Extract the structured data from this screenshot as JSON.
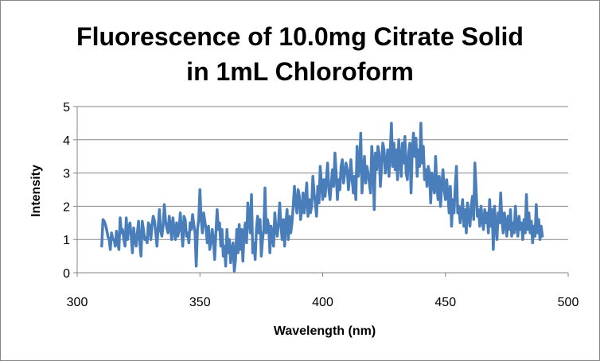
{
  "chart_data": {
    "type": "line",
    "title_lines": [
      "Fluorescence of 10.0mg Citrate Solid",
      "in 1mL Chloroform"
    ],
    "xlabel": "Wavelength (nm)",
    "ylabel": "Intensity",
    "xlim": [
      300,
      500
    ],
    "ylim": [
      0,
      5
    ],
    "x_ticks": [
      300,
      350,
      400,
      450,
      500
    ],
    "y_ticks": [
      0,
      1,
      2,
      3,
      4,
      5
    ],
    "grid": "horizontal",
    "legend": "none",
    "series": [
      {
        "name": "Fluorescence",
        "color": "#4a7ebb",
        "x_start": 310,
        "x_step": 0.5,
        "values": [
          0.8,
          1.6,
          1.55,
          1.45,
          1.3,
          1.1,
          1.0,
          0.7,
          1.2,
          1.0,
          1.0,
          0.8,
          1.25,
          0.9,
          0.7,
          1.65,
          1.2,
          1.3,
          1.0,
          0.8,
          1.65,
          1.0,
          1.35,
          1.5,
          1.1,
          0.6,
          1.35,
          1.0,
          0.8,
          1.2,
          1.55,
          0.9,
          0.5,
          1.55,
          1.3,
          1.0,
          1.05,
          0.9,
          1.5,
          1.4,
          1.0,
          1.45,
          1.7,
          1.55,
          1.2,
          0.8,
          1.4,
          1.9,
          1.25,
          1.1,
          1.4,
          2.05,
          1.55,
          1.35,
          1.2,
          1.7,
          1.4,
          1.0,
          1.65,
          1.3,
          1.0,
          1.5,
          1.1,
          1.3,
          1.8,
          1.3,
          0.8,
          1.7,
          1.6,
          1.1,
          1.2,
          0.9,
          1.5,
          1.3,
          1.75,
          1.45,
          1.2,
          0.2,
          1.3,
          1.6,
          2.5,
          1.6,
          1.2,
          1.8,
          1.55,
          1.3,
          0.9,
          1.4,
          0.7,
          0.9,
          1.3,
          1.0,
          0.4,
          1.2,
          1.9,
          1.3,
          1.5,
          0.8,
          1.3,
          0.5,
          0.8,
          0.2,
          1.3,
          0.6,
          1.0,
          0.3,
          0.7,
          0.9,
          0.05,
          0.4,
          1.3,
          0.6,
          1.45,
          0.7,
          1.3,
          0.35,
          1.2,
          1.5,
          0.9,
          2.1,
          1.65,
          1.2,
          2.35,
          0.6,
          0.9,
          0.4,
          1.3,
          1.7,
          1.2,
          1.6,
          0.5,
          1.0,
          1.3,
          2.55,
          1.2,
          1.6,
          1.4,
          0.6,
          1.4,
          1.05,
          0.8,
          1.8,
          1.3,
          1.1,
          1.5,
          2.1,
          1.4,
          1.0,
          1.6,
          0.8,
          1.5,
          1.9,
          1.0,
          1.7,
          1.2,
          1.5,
          2.0,
          2.6,
          2.1,
          1.8,
          2.5,
          2.3,
          1.6,
          1.9,
          2.4,
          1.8,
          2.2,
          2.7,
          1.7,
          2.2,
          1.8,
          2.0,
          2.9,
          2.4,
          2.1,
          1.7,
          2.6,
          2.1,
          3.2,
          2.7,
          2.2,
          2.8,
          2.3,
          2.8,
          3.3,
          2.5,
          2.2,
          2.7,
          3.1,
          2.6,
          3.6,
          3.0,
          2.2,
          2.8,
          2.5,
          3.2,
          3.4,
          2.7,
          3.0,
          3.3,
          3.1,
          2.5,
          2.9,
          3.4,
          2.8,
          2.4,
          2.9,
          2.2,
          3.8,
          2.9,
          3.2,
          4.2,
          2.4,
          3.0,
          3.5,
          2.7,
          3.2,
          3.0,
          2.7,
          2.4,
          3.8,
          3.3,
          1.9,
          3.6,
          3.1,
          3.8,
          3.6,
          2.6,
          3.2,
          3.9,
          3.7,
          3.0,
          3.3,
          3.7,
          2.9,
          3.6,
          4.5,
          3.2,
          3.9,
          3.1,
          3.7,
          2.8,
          4.0,
          3.4,
          2.9,
          3.9,
          3.3,
          4.1,
          3.0,
          2.8,
          3.6,
          3.9,
          2.4,
          3.7,
          4.2,
          3.5,
          4.05,
          2.9,
          3.7,
          3.2,
          4.5,
          3.3,
          3.8,
          2.8,
          3.1,
          2.6,
          3.2,
          3.0,
          2.1,
          3.0,
          2.7,
          2.4,
          3.5,
          2.6,
          2.2,
          2.9,
          2.0,
          2.6,
          3.1,
          2.5,
          2.2,
          2.8,
          2.4,
          1.8,
          2.6,
          1.4,
          2.2,
          1.8,
          2.6,
          3.2,
          1.8,
          2.0,
          1.5,
          1.8,
          2.2,
          1.4,
          1.9,
          1.2,
          2.1,
          1.7,
          1.4,
          2.0,
          2.3,
          1.6,
          3.3,
          2.5,
          1.7,
          1.9,
          1.4,
          2.0,
          1.6,
          1.3,
          1.9,
          1.5,
          1.8,
          1.2,
          2.2,
          1.4,
          1.9,
          0.7,
          2.0,
          1.4,
          1.0,
          1.8,
          1.5,
          2.4,
          1.6,
          1.2,
          1.8,
          1.5,
          1.1,
          1.7,
          1.3,
          1.9,
          1.1,
          1.5,
          1.2,
          2.0,
          1.4,
          1.1,
          1.7,
          1.3,
          1.5,
          1.0,
          1.6,
          1.2,
          2.35,
          1.3,
          1.8,
          1.2,
          1.55,
          0.9,
          1.4,
          1.1,
          2.05,
          1.2,
          1.6,
          1.0,
          1.4,
          1.1
        ]
      }
    ]
  }
}
